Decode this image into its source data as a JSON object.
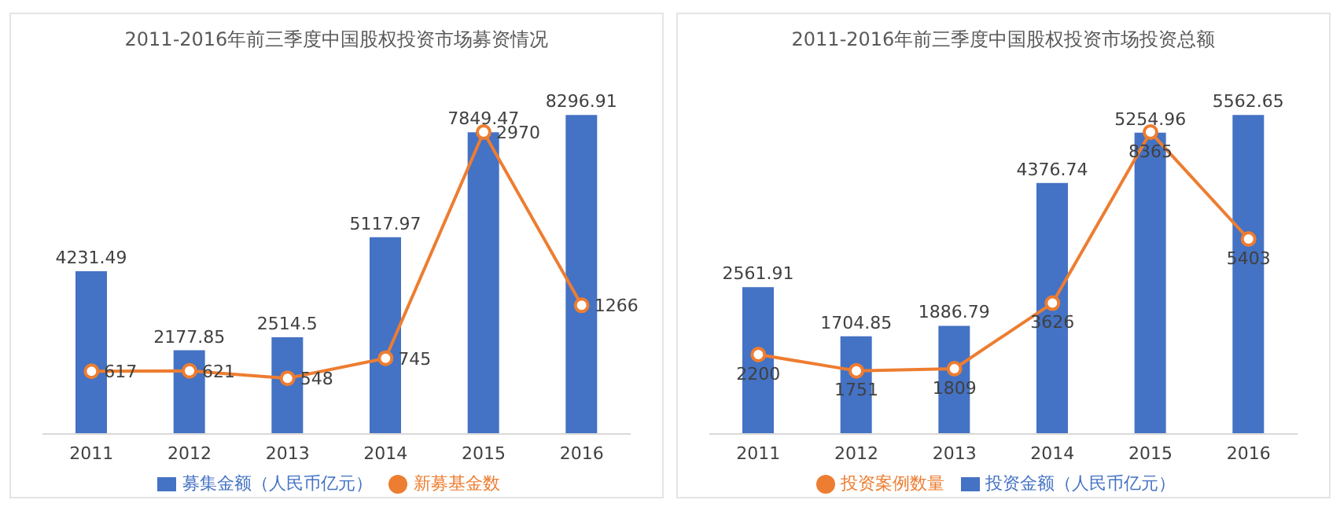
{
  "chart_data": [
    {
      "type": "bar",
      "title": "2011-2016年前三季度中国股权投资市场募资情况",
      "categories": [
        "2011",
        "2012",
        "2013",
        "2014",
        "2015",
        "2016"
      ],
      "series": [
        {
          "name": "募集金额（人民币亿元）",
          "color": "#4472c4",
          "values": [
            4231.49,
            2177.85,
            2514.5,
            5117.97,
            7849.47,
            8296.91
          ]
        },
        {
          "name": "新募基金数",
          "type": "line",
          "axis": "y2",
          "color": "#ed7d31",
          "values": [
            617,
            621,
            548,
            745,
            2970,
            1266
          ]
        }
      ],
      "data_labels": true,
      "legend": "bottom",
      "marker": "circle",
      "tick_labels": "x"
    },
    {
      "type": "bar",
      "title": "2011-2016年前三季度中国股权投资市场投资总额",
      "categories": [
        "2011",
        "2012",
        "2013",
        "2014",
        "2015",
        "2016"
      ],
      "series": [
        {
          "name": "投资金额（人民币亿元）",
          "color": "#4472c4",
          "values": [
            2561.91,
            1704.85,
            1886.79,
            4376.74,
            5254.96,
            5562.65
          ]
        },
        {
          "name": "投资案例数量",
          "type": "line",
          "axis": "y2",
          "color": "#ed7d31",
          "values": [
            2200,
            1751,
            1809,
            3626,
            8365,
            5403
          ]
        }
      ],
      "data_labels": true,
      "legend": "bottom",
      "marker": "circle",
      "tick_labels": "x"
    }
  ]
}
